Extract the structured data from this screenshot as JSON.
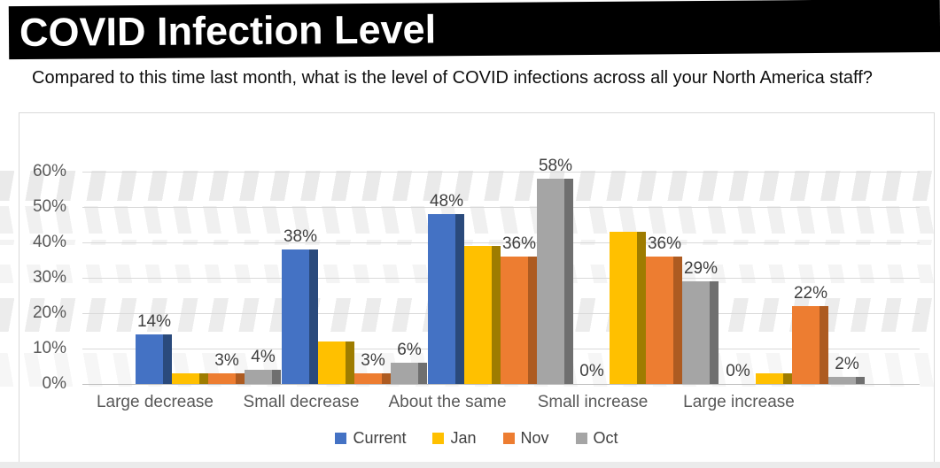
{
  "page": {
    "title": "COVID Infection Level",
    "subtitle": "Compared to this time last month, what is the level of COVID infections across all your North America staff?"
  },
  "chart_data": {
    "type": "bar",
    "title": "COVID Infection Level",
    "question": "Compared to this time last month, what is the level of COVID infections across all your North America staff?",
    "categories": [
      "Large decrease",
      "Small decrease",
      "About the same",
      "Small increase",
      "Large increase"
    ],
    "series": [
      {
        "name": "Current",
        "color": "#4472C4",
        "side_color": "#2a4a7c",
        "values": [
          14,
          38,
          48,
          0,
          0
        ],
        "show_labels": true
      },
      {
        "name": "Jan",
        "color": "#FFC000",
        "side_color": "#9e7c00",
        "values": [
          3,
          12,
          39,
          43,
          3
        ],
        "show_labels": false
      },
      {
        "name": "Nov",
        "color": "#ED7D31",
        "side_color": "#ad5b21",
        "values": [
          3,
          3,
          36,
          36,
          22
        ],
        "show_labels": true
      },
      {
        "name": "Oct",
        "color": "#A5A5A5",
        "side_color": "#6f6f6f",
        "values": [
          4,
          6,
          58,
          29,
          2
        ],
        "show_labels": true
      }
    ],
    "data_label_suffix": "%",
    "y_axis": {
      "min": 0,
      "max": 60,
      "step": 10,
      "ticks": [
        "0%",
        "10%",
        "20%",
        "30%",
        "40%",
        "50%",
        "60%"
      ]
    },
    "legend": [
      "Current",
      "Jan",
      "Nov",
      "Oct"
    ],
    "legend_position": "bottom",
    "grid": true,
    "xlabel": "",
    "ylabel": ""
  }
}
